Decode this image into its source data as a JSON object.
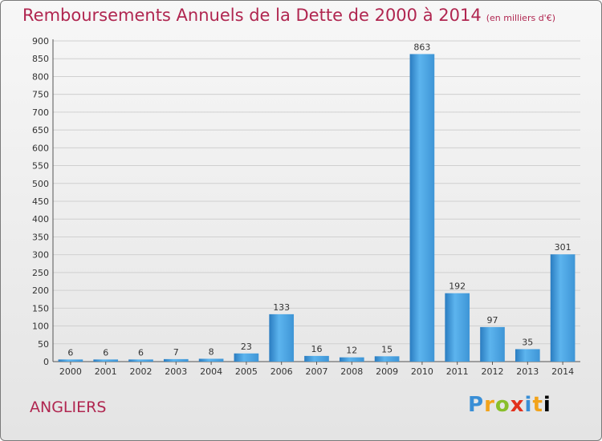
{
  "header": {
    "title": "Remboursements Annuels de la Dette de 2000 à 2014",
    "unit": "(en milliers d'€)"
  },
  "footer": {
    "commune": "ANGLIERS",
    "logo_text": "Proxiti"
  },
  "colors": {
    "title": "#b02650",
    "bar_light": "#5cb4ee",
    "bar_dark": "#2a7cc0",
    "grid": "#d0d0d0"
  },
  "chart_data": {
    "type": "bar",
    "title": "Remboursements Annuels de la Dette de 2000 à 2014",
    "categories": [
      "2000",
      "2001",
      "2002",
      "2003",
      "2004",
      "2005",
      "2006",
      "2007",
      "2008",
      "2009",
      "2010",
      "2011",
      "2012",
      "2013",
      "2014"
    ],
    "values": [
      6,
      6,
      6,
      7,
      8,
      23,
      133,
      16,
      12,
      15,
      863,
      192,
      97,
      35,
      301
    ],
    "ylim": [
      0,
      900
    ],
    "yticks": [
      0,
      50,
      100,
      150,
      200,
      250,
      300,
      350,
      400,
      450,
      500,
      550,
      600,
      650,
      700,
      750,
      800,
      850,
      900
    ],
    "grid": true,
    "data_labels": true
  }
}
